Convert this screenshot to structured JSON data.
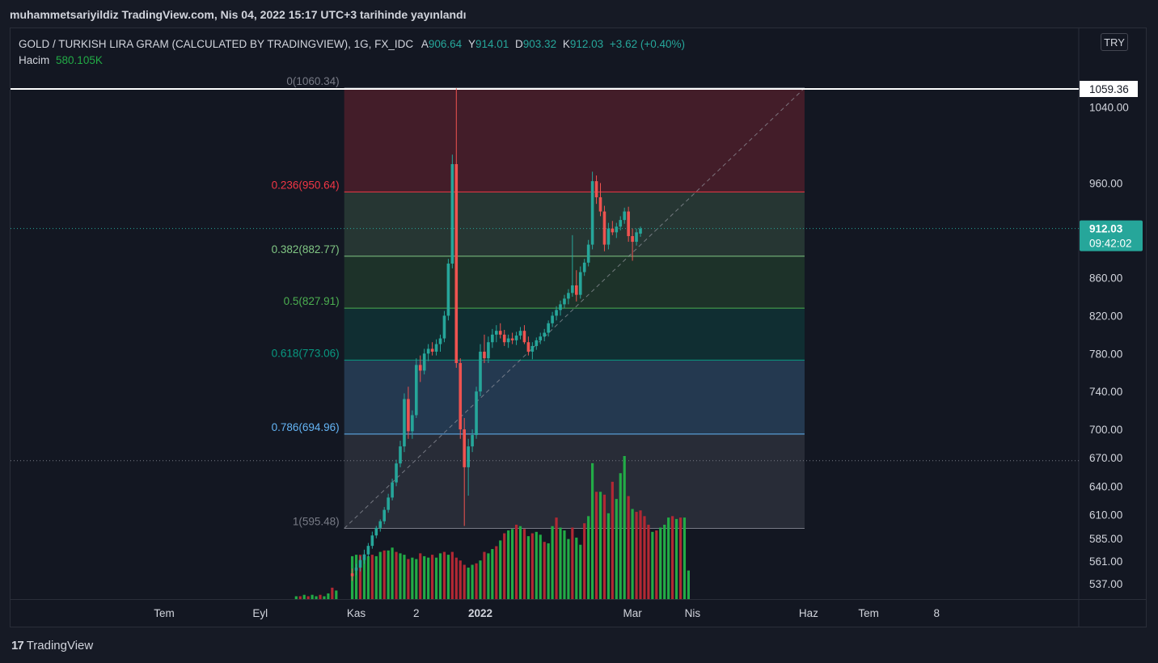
{
  "publish_line": "muhammetsariyildiz TradingView.com, Nis 04, 2022 15:17 UTC+3 tarihinde yayınlandı",
  "legend": {
    "symbol": "GOLD / TURKISH LIRA GRAM (CALCULATED BY TRADINGVIEW), 1G, FX_IDC",
    "o_label": "A",
    "o_value": "906.64",
    "h_label": "Y",
    "h_value": "914.01",
    "l_label": "D",
    "l_value": "903.32",
    "c_label": "K",
    "c_value": "912.03",
    "change": "+3.62 (+0.40%)",
    "volume_label": "Hacim",
    "volume_value": "580.105K"
  },
  "currency_button": "TRY",
  "brand": "TradingView",
  "colors": {
    "up": "#26a69a",
    "down": "#ef5350",
    "vol_up": "#22ab46",
    "vol_down": "#b22833",
    "price_tag": "#26a69a"
  },
  "chart_data": {
    "type": "candlestick",
    "symbol": "GOLD/TRY gram",
    "interval": "1G",
    "ylim": [
      530,
      1125
    ],
    "y_ticks": [
      {
        "value": 1040,
        "label": "1040.00"
      },
      {
        "value": 960,
        "label": "960.00"
      },
      {
        "value": 860,
        "label": "860.00"
      },
      {
        "value": 820,
        "label": "820.00"
      },
      {
        "value": 780,
        "label": "780.00"
      },
      {
        "value": 740,
        "label": "740.00"
      },
      {
        "value": 700,
        "label": "700.00"
      },
      {
        "value": 670,
        "label": "670.00"
      },
      {
        "value": 640,
        "label": "640.00"
      },
      {
        "value": 610,
        "label": "610.00"
      },
      {
        "value": 585,
        "label": "585.00"
      },
      {
        "value": 561,
        "label": "561.00"
      },
      {
        "value": 537,
        "label": "537.00"
      }
    ],
    "x_ticks": [
      {
        "label": "Tem",
        "index": -69,
        "bold": false
      },
      {
        "label": "Eyl",
        "index": -45,
        "bold": false
      },
      {
        "label": "Kas",
        "index": -21,
        "bold": false
      },
      {
        "label": "2",
        "index": -6,
        "bold": false
      },
      {
        "label": "2022",
        "index": 10,
        "bold": true
      },
      {
        "label": "Mar",
        "index": 48,
        "bold": false
      },
      {
        "label": "Nis",
        "index": 63,
        "bold": false
      },
      {
        "label": "Haz",
        "index": 92,
        "bold": false
      },
      {
        "label": "Tem",
        "index": 107,
        "bold": false
      },
      {
        "label": "8",
        "index": 124,
        "bold": false
      }
    ],
    "last_price": {
      "value": 912.03,
      "label": "912.03",
      "countdown": "09:42:02"
    },
    "high_marker": {
      "value": 1059.36,
      "label": "1059.36"
    },
    "horizontal_dotted_levels": [
      912.03,
      667
    ],
    "fibonacci": {
      "start_index": -24,
      "end_index": 91,
      "levels": [
        {
          "ratio": "0",
          "price": 1060.34,
          "label": "0(1060.34)",
          "color": "#787b86",
          "fill": "rgba(242,54,69,0.22)"
        },
        {
          "ratio": "0.236",
          "price": 950.64,
          "label": "0.236(950.64)",
          "color": "#f23645",
          "fill": "rgba(129,199,132,0.18)"
        },
        {
          "ratio": "0.382",
          "price": 882.77,
          "label": "0.382(882.77)",
          "color": "#81c784",
          "fill": "rgba(76,175,80,0.18)"
        },
        {
          "ratio": "0.5",
          "price": 827.91,
          "label": "0.5(827.91)",
          "color": "#4caf50",
          "fill": "rgba(8,153,129,0.18)"
        },
        {
          "ratio": "0.618",
          "price": 773.06,
          "label": "0.618(773.06)",
          "color": "#089981",
          "fill": "rgba(100,181,246,0.22)"
        },
        {
          "ratio": "0.786",
          "price": 694.96,
          "label": "0.786(694.96)",
          "color": "#64b5f6",
          "fill": "rgba(120,123,134,0.22)"
        },
        {
          "ratio": "1",
          "price": 595.48,
          "label": "1(595.48)",
          "color": "#787b86",
          "fill": null
        }
      ]
    },
    "trend_line": {
      "from": {
        "index": -24,
        "price": 595.48
      },
      "to": {
        "index": 91,
        "price": 1060.34
      }
    },
    "ohlc": [
      {
        "i": -22,
        "o": 548,
        "h": 553,
        "l": 540,
        "c": 545
      },
      {
        "i": -21,
        "o": 551,
        "h": 558,
        "l": 546,
        "c": 554
      },
      {
        "i": -20,
        "o": 554,
        "h": 566,
        "l": 550,
        "c": 562
      },
      {
        "i": -19,
        "o": 562,
        "h": 573,
        "l": 558,
        "c": 568
      },
      {
        "i": -18,
        "o": 568,
        "h": 580,
        "l": 565,
        "c": 577
      },
      {
        "i": -17,
        "o": 577,
        "h": 592,
        "l": 574,
        "c": 588
      },
      {
        "i": -16,
        "o": 588,
        "h": 598,
        "l": 585,
        "c": 596
      },
      {
        "i": -15,
        "o": 596,
        "h": 605,
        "l": 592,
        "c": 603
      },
      {
        "i": -14,
        "o": 603,
        "h": 618,
        "l": 600,
        "c": 615
      },
      {
        "i": -13,
        "o": 615,
        "h": 632,
        "l": 612,
        "c": 628
      },
      {
        "i": -12,
        "o": 628,
        "h": 648,
        "l": 625,
        "c": 644
      },
      {
        "i": -11,
        "o": 644,
        "h": 668,
        "l": 640,
        "c": 664
      },
      {
        "i": -10,
        "o": 664,
        "h": 688,
        "l": 660,
        "c": 682
      },
      {
        "i": -9,
        "o": 682,
        "h": 738,
        "l": 676,
        "c": 732
      },
      {
        "i": -8,
        "o": 732,
        "h": 745,
        "l": 690,
        "c": 698
      },
      {
        "i": -7,
        "o": 698,
        "h": 720,
        "l": 690,
        "c": 715
      },
      {
        "i": -6,
        "o": 715,
        "h": 775,
        "l": 712,
        "c": 768
      },
      {
        "i": -5,
        "o": 768,
        "h": 778,
        "l": 750,
        "c": 762
      },
      {
        "i": -4,
        "o": 762,
        "h": 785,
        "l": 758,
        "c": 780
      },
      {
        "i": -3,
        "o": 780,
        "h": 790,
        "l": 772,
        "c": 785
      },
      {
        "i": -2,
        "o": 785,
        "h": 792,
        "l": 778,
        "c": 782
      },
      {
        "i": -1,
        "o": 782,
        "h": 795,
        "l": 778,
        "c": 790
      },
      {
        "i": 0,
        "o": 790,
        "h": 800,
        "l": 782,
        "c": 796
      },
      {
        "i": 1,
        "o": 796,
        "h": 825,
        "l": 792,
        "c": 820
      },
      {
        "i": 2,
        "o": 820,
        "h": 880,
        "l": 815,
        "c": 875
      },
      {
        "i": 3,
        "o": 875,
        "h": 990,
        "l": 870,
        "c": 980
      },
      {
        "i": 4,
        "o": 980,
        "h": 1060,
        "l": 765,
        "c": 770
      },
      {
        "i": 5,
        "o": 770,
        "h": 775,
        "l": 690,
        "c": 700
      },
      {
        "i": 6,
        "o": 700,
        "h": 712,
        "l": 598,
        "c": 660
      },
      {
        "i": 7,
        "o": 660,
        "h": 690,
        "l": 630,
        "c": 682
      },
      {
        "i": 8,
        "o": 682,
        "h": 700,
        "l": 676,
        "c": 694
      },
      {
        "i": 9,
        "o": 694,
        "h": 745,
        "l": 690,
        "c": 740
      },
      {
        "i": 10,
        "o": 740,
        "h": 790,
        "l": 735,
        "c": 782
      },
      {
        "i": 11,
        "o": 782,
        "h": 800,
        "l": 770,
        "c": 775
      },
      {
        "i": 12,
        "o": 775,
        "h": 798,
        "l": 770,
        "c": 792
      },
      {
        "i": 13,
        "o": 792,
        "h": 806,
        "l": 786,
        "c": 800
      },
      {
        "i": 14,
        "o": 800,
        "h": 810,
        "l": 792,
        "c": 804
      },
      {
        "i": 15,
        "o": 804,
        "h": 812,
        "l": 796,
        "c": 800
      },
      {
        "i": 16,
        "o": 800,
        "h": 805,
        "l": 788,
        "c": 792
      },
      {
        "i": 17,
        "o": 792,
        "h": 800,
        "l": 786,
        "c": 796
      },
      {
        "i": 18,
        "o": 796,
        "h": 802,
        "l": 790,
        "c": 794
      },
      {
        "i": 19,
        "o": 794,
        "h": 803,
        "l": 789,
        "c": 799
      },
      {
        "i": 20,
        "o": 799,
        "h": 808,
        "l": 795,
        "c": 804
      },
      {
        "i": 21,
        "o": 804,
        "h": 810,
        "l": 790,
        "c": 792
      },
      {
        "i": 22,
        "o": 792,
        "h": 798,
        "l": 778,
        "c": 782
      },
      {
        "i": 23,
        "o": 782,
        "h": 792,
        "l": 774,
        "c": 788
      },
      {
        "i": 24,
        "o": 788,
        "h": 797,
        "l": 784,
        "c": 794
      },
      {
        "i": 25,
        "o": 794,
        "h": 802,
        "l": 790,
        "c": 798
      },
      {
        "i": 26,
        "o": 798,
        "h": 806,
        "l": 793,
        "c": 802
      },
      {
        "i": 27,
        "o": 802,
        "h": 815,
        "l": 798,
        "c": 812
      },
      {
        "i": 28,
        "o": 812,
        "h": 824,
        "l": 808,
        "c": 820
      },
      {
        "i": 29,
        "o": 820,
        "h": 830,
        "l": 815,
        "c": 826
      },
      {
        "i": 30,
        "o": 826,
        "h": 836,
        "l": 820,
        "c": 832
      },
      {
        "i": 31,
        "o": 832,
        "h": 842,
        "l": 828,
        "c": 838
      },
      {
        "i": 32,
        "o": 838,
        "h": 848,
        "l": 832,
        "c": 844
      },
      {
        "i": 33,
        "o": 844,
        "h": 905,
        "l": 840,
        "c": 852
      },
      {
        "i": 34,
        "o": 852,
        "h": 868,
        "l": 835,
        "c": 842
      },
      {
        "i": 35,
        "o": 842,
        "h": 872,
        "l": 838,
        "c": 866
      },
      {
        "i": 36,
        "o": 866,
        "h": 880,
        "l": 862,
        "c": 876
      },
      {
        "i": 37,
        "o": 876,
        "h": 900,
        "l": 872,
        "c": 895
      },
      {
        "i": 38,
        "o": 895,
        "h": 972,
        "l": 890,
        "c": 962
      },
      {
        "i": 39,
        "o": 962,
        "h": 968,
        "l": 938,
        "c": 945
      },
      {
        "i": 40,
        "o": 945,
        "h": 960,
        "l": 925,
        "c": 930
      },
      {
        "i": 41,
        "o": 930,
        "h": 936,
        "l": 888,
        "c": 895
      },
      {
        "i": 42,
        "o": 895,
        "h": 918,
        "l": 890,
        "c": 912
      },
      {
        "i": 43,
        "o": 912,
        "h": 920,
        "l": 905,
        "c": 908
      },
      {
        "i": 44,
        "o": 908,
        "h": 918,
        "l": 902,
        "c": 914
      },
      {
        "i": 45,
        "o": 914,
        "h": 925,
        "l": 910,
        "c": 921
      },
      {
        "i": 46,
        "o": 921,
        "h": 934,
        "l": 917,
        "c": 930
      },
      {
        "i": 47,
        "o": 930,
        "h": 935,
        "l": 898,
        "c": 904
      },
      {
        "i": 48,
        "o": 904,
        "h": 912,
        "l": 878,
        "c": 898
      },
      {
        "i": 49,
        "o": 898,
        "h": 912,
        "l": 894,
        "c": 908
      },
      {
        "i": 50,
        "o": 906.64,
        "h": 914.01,
        "l": 903.32,
        "c": 912.03
      }
    ],
    "volume": {
      "ymax": 100,
      "bars": [
        {
          "i": -36,
          "v": 2,
          "up": true
        },
        {
          "i": -35,
          "v": 2,
          "up": false
        },
        {
          "i": -34,
          "v": 3,
          "up": true
        },
        {
          "i": -33,
          "v": 2,
          "up": false
        },
        {
          "i": -32,
          "v": 3,
          "up": true
        },
        {
          "i": -31,
          "v": 2,
          "up": true
        },
        {
          "i": -30,
          "v": 3,
          "up": false
        },
        {
          "i": -29,
          "v": 2,
          "up": true
        },
        {
          "i": -28,
          "v": 4,
          "up": true
        },
        {
          "i": -27,
          "v": 8,
          "up": false
        },
        {
          "i": -26,
          "v": 6,
          "up": true
        },
        {
          "i": -22,
          "v": 30,
          "up": true
        },
        {
          "i": -21,
          "v": 31,
          "up": true
        },
        {
          "i": -20,
          "v": 31,
          "up": false
        },
        {
          "i": -19,
          "v": 29,
          "up": true
        },
        {
          "i": -18,
          "v": 30,
          "up": true
        },
        {
          "i": -17,
          "v": 31,
          "up": false
        },
        {
          "i": -16,
          "v": 30,
          "up": true
        },
        {
          "i": -15,
          "v": 33,
          "up": true
        },
        {
          "i": -14,
          "v": 34,
          "up": false
        },
        {
          "i": -13,
          "v": 34,
          "up": true
        },
        {
          "i": -12,
          "v": 36,
          "up": true
        },
        {
          "i": -11,
          "v": 33,
          "up": false
        },
        {
          "i": -10,
          "v": 32,
          "up": true
        },
        {
          "i": -9,
          "v": 31,
          "up": true
        },
        {
          "i": -8,
          "v": 28,
          "up": false
        },
        {
          "i": -7,
          "v": 29,
          "up": true
        },
        {
          "i": -6,
          "v": 28,
          "up": true
        },
        {
          "i": -5,
          "v": 32,
          "up": false
        },
        {
          "i": -4,
          "v": 30,
          "up": true
        },
        {
          "i": -3,
          "v": 29,
          "up": true
        },
        {
          "i": -2,
          "v": 31,
          "up": false
        },
        {
          "i": -1,
          "v": 29,
          "up": true
        },
        {
          "i": 0,
          "v": 32,
          "up": true
        },
        {
          "i": 1,
          "v": 33,
          "up": false
        },
        {
          "i": 2,
          "v": 31,
          "up": true
        },
        {
          "i": 3,
          "v": 33,
          "up": false
        },
        {
          "i": 4,
          "v": 29,
          "up": false
        },
        {
          "i": 5,
          "v": 27,
          "up": false
        },
        {
          "i": 6,
          "v": 24,
          "up": false
        },
        {
          "i": 7,
          "v": 22,
          "up": true
        },
        {
          "i": 8,
          "v": 24,
          "up": true
        },
        {
          "i": 9,
          "v": 25,
          "up": false
        },
        {
          "i": 10,
          "v": 27,
          "up": true
        },
        {
          "i": 11,
          "v": 33,
          "up": false
        },
        {
          "i": 12,
          "v": 32,
          "up": true
        },
        {
          "i": 13,
          "v": 35,
          "up": true
        },
        {
          "i": 14,
          "v": 37,
          "up": false
        },
        {
          "i": 15,
          "v": 41,
          "up": true
        },
        {
          "i": 16,
          "v": 46,
          "up": false
        },
        {
          "i": 17,
          "v": 48,
          "up": true
        },
        {
          "i": 18,
          "v": 49,
          "up": true
        },
        {
          "i": 19,
          "v": 52,
          "up": false
        },
        {
          "i": 20,
          "v": 51,
          "up": true
        },
        {
          "i": 21,
          "v": 49,
          "up": false
        },
        {
          "i": 22,
          "v": 44,
          "up": true
        },
        {
          "i": 23,
          "v": 46,
          "up": false
        },
        {
          "i": 24,
          "v": 47,
          "up": true
        },
        {
          "i": 25,
          "v": 45,
          "up": true
        },
        {
          "i": 26,
          "v": 40,
          "up": false
        },
        {
          "i": 27,
          "v": 39,
          "up": true
        },
        {
          "i": 28,
          "v": 51,
          "up": true
        },
        {
          "i": 29,
          "v": 57,
          "up": false
        },
        {
          "i": 30,
          "v": 50,
          "up": true
        },
        {
          "i": 31,
          "v": 48,
          "up": true
        },
        {
          "i": 32,
          "v": 42,
          "up": true
        },
        {
          "i": 33,
          "v": 50,
          "up": false
        },
        {
          "i": 34,
          "v": 43,
          "up": true
        },
        {
          "i": 35,
          "v": 38,
          "up": true
        },
        {
          "i": 36,
          "v": 53,
          "up": false
        },
        {
          "i": 37,
          "v": 58,
          "up": true
        },
        {
          "i": 38,
          "v": 95,
          "up": true
        },
        {
          "i": 39,
          "v": 75,
          "up": false
        },
        {
          "i": 40,
          "v": 75,
          "up": true
        },
        {
          "i": 41,
          "v": 73,
          "up": false
        },
        {
          "i": 42,
          "v": 60,
          "up": true
        },
        {
          "i": 43,
          "v": 82,
          "up": false
        },
        {
          "i": 44,
          "v": 70,
          "up": true
        },
        {
          "i": 45,
          "v": 88,
          "up": true
        },
        {
          "i": 46,
          "v": 100,
          "up": true
        },
        {
          "i": 47,
          "v": 72,
          "up": false
        },
        {
          "i": 48,
          "v": 63,
          "up": true
        },
        {
          "i": 49,
          "v": 61,
          "up": false
        },
        {
          "i": 50,
          "v": 62,
          "up": false
        },
        {
          "i": 51,
          "v": 58,
          "up": false
        },
        {
          "i": 52,
          "v": 52,
          "up": false
        },
        {
          "i": 53,
          "v": 47,
          "up": true
        },
        {
          "i": 54,
          "v": 48,
          "up": false
        },
        {
          "i": 55,
          "v": 50,
          "up": true
        },
        {
          "i": 56,
          "v": 52,
          "up": true
        },
        {
          "i": 57,
          "v": 57,
          "up": true
        },
        {
          "i": 58,
          "v": 58,
          "up": false
        },
        {
          "i": 59,
          "v": 56,
          "up": true
        },
        {
          "i": 60,
          "v": 57,
          "up": false
        },
        {
          "i": 61,
          "v": 57,
          "up": true
        },
        {
          "i": 62,
          "v": 20,
          "up": true
        }
      ]
    }
  }
}
